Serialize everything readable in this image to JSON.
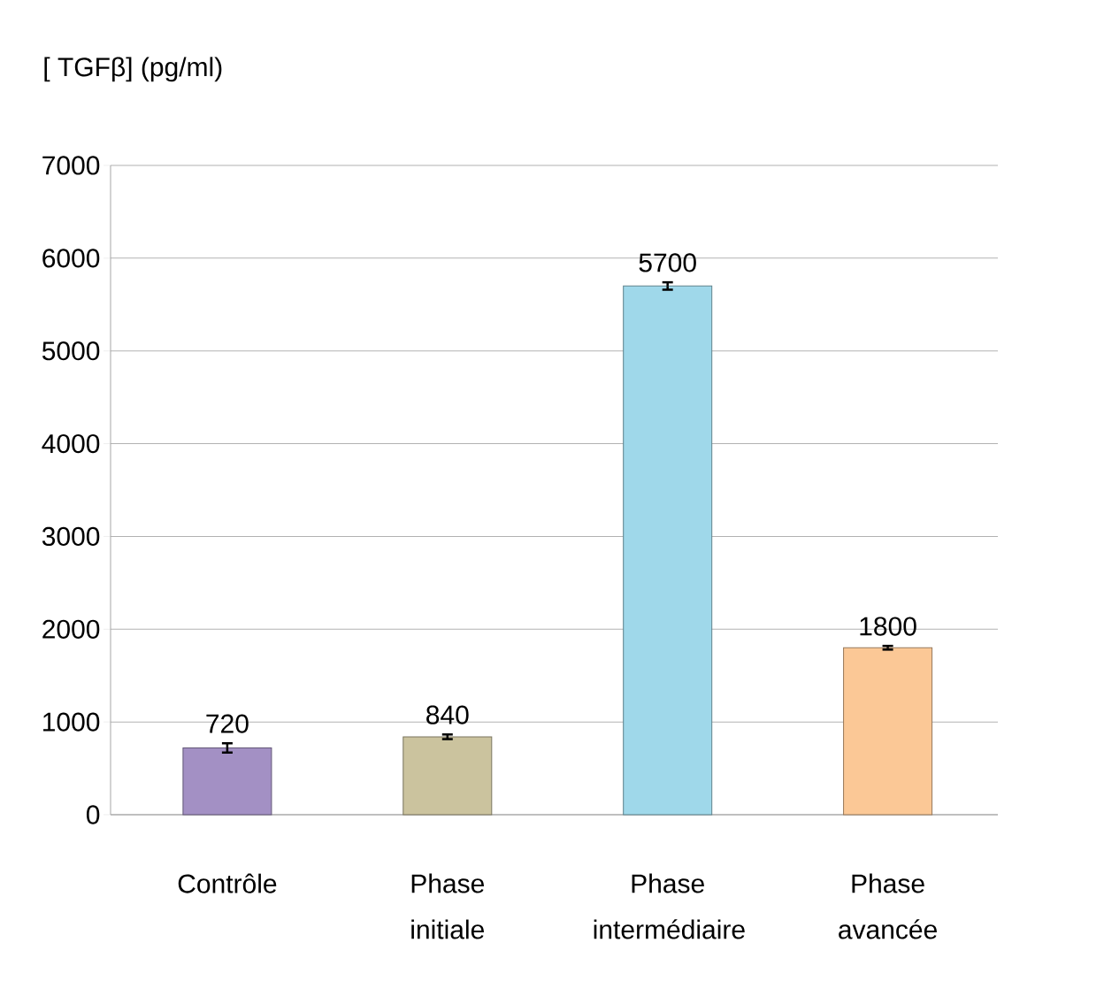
{
  "chart_data": {
    "type": "bar",
    "ylabel": "[ TGFβ] (pg/ml)",
    "categories": [
      "Contrôle",
      "Phase initiale",
      "Phase intermédiaire",
      "Phase avancée"
    ],
    "values": [
      720,
      840,
      5700,
      1800
    ],
    "errors": [
      50,
      25,
      40,
      20
    ],
    "colors": [
      "#a390c4",
      "#cbc39e",
      "#9fd8ea",
      "#fbc896"
    ],
    "ylim": [
      0,
      7000
    ],
    "yticks": [
      0,
      1000,
      2000,
      3000,
      4000,
      5000,
      6000,
      7000
    ],
    "grid": "y",
    "data_labels": true
  }
}
